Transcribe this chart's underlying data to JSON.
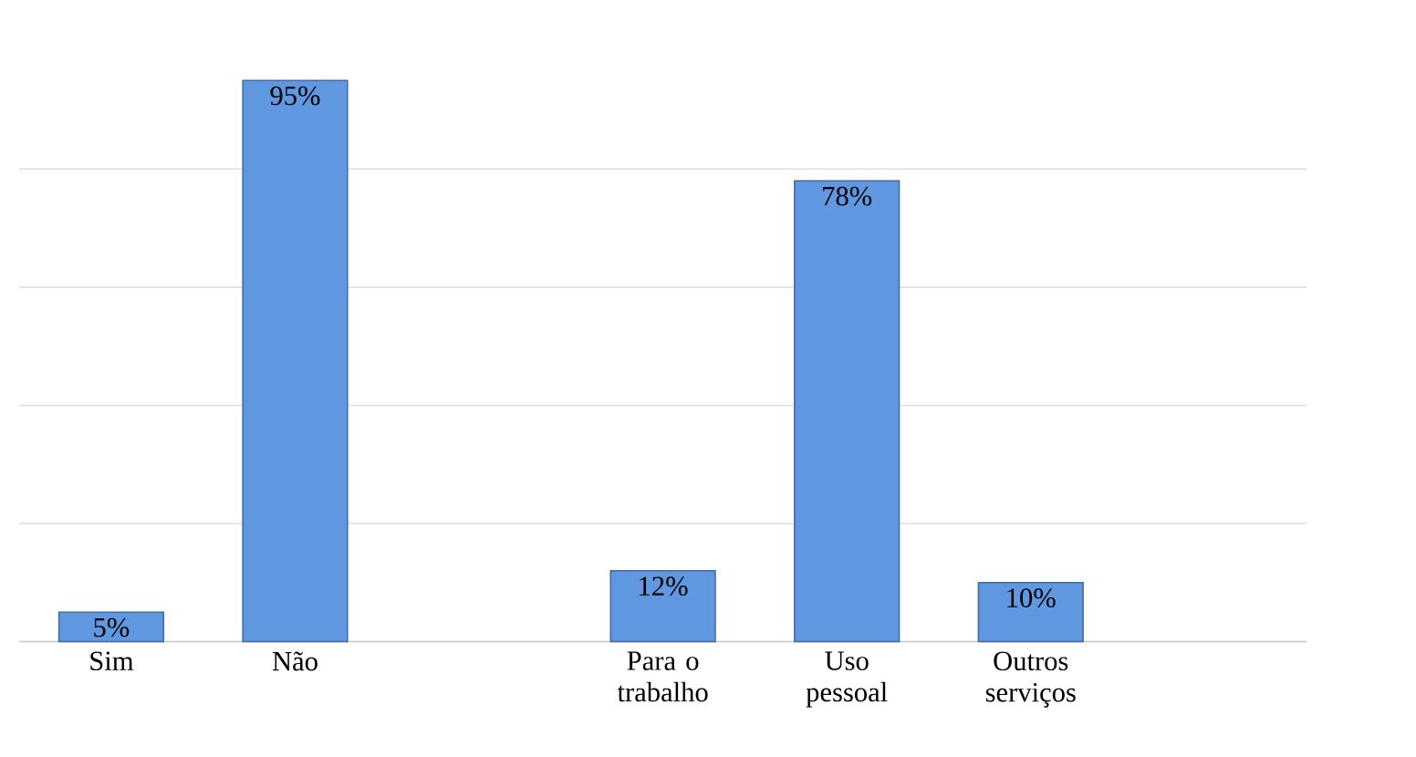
{
  "chart_data": {
    "type": "bar",
    "categories": [
      "Sim",
      "Não",
      null,
      "Para o trabalho",
      "Uso pessoal",
      "Outros serviços",
      null
    ],
    "values": [
      5,
      95,
      null,
      12,
      78,
      10,
      null
    ],
    "value_labels": [
      "5%",
      "95%",
      null,
      "12%",
      "78%",
      "10%",
      null
    ],
    "color": "#5f97e0",
    "grid": "y"
  }
}
